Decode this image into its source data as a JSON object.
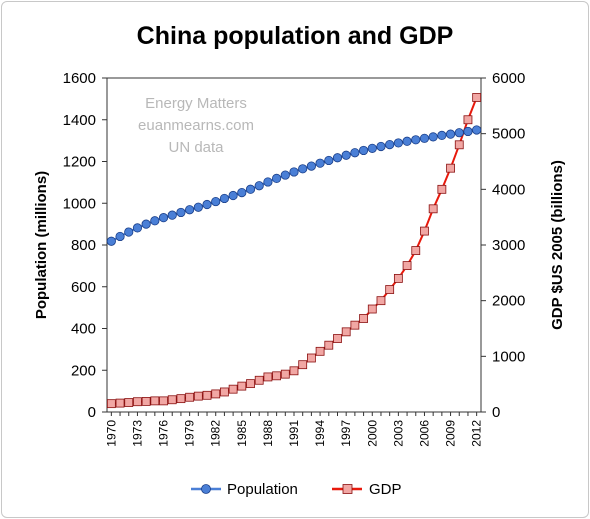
{
  "chart_data": {
    "type": "line",
    "title": "China population and GDP",
    "watermark": [
      "Energy Matters",
      "euanmearns.com",
      "UN data"
    ],
    "x": [
      1970,
      1971,
      1972,
      1973,
      1974,
      1975,
      1976,
      1977,
      1978,
      1979,
      1980,
      1981,
      1982,
      1983,
      1984,
      1985,
      1986,
      1987,
      1988,
      1989,
      1990,
      1991,
      1992,
      1993,
      1994,
      1995,
      1996,
      1997,
      1998,
      1999,
      2000,
      2001,
      2002,
      2003,
      2004,
      2005,
      2006,
      2007,
      2008,
      2009,
      2010,
      2011,
      2012
    ],
    "x_tick_labels": [
      "1970",
      "1973",
      "1976",
      "1979",
      "1982",
      "1985",
      "1988",
      "1991",
      "1994",
      "1997",
      "2000",
      "2003",
      "2006",
      "2009",
      "2012"
    ],
    "y_left": {
      "label": "Population (millions)",
      "ylim": [
        0,
        1600
      ],
      "ticks": [
        "0",
        "200",
        "400",
        "600",
        "800",
        "1000",
        "1200",
        "1400",
        "1600"
      ]
    },
    "y_right": {
      "label": "GDP $US 2005 (billions)",
      "ylim": [
        0,
        6000
      ],
      "ticks": [
        "0",
        "1000",
        "2000",
        "3000",
        "4000",
        "5000",
        "6000"
      ]
    },
    "grid": false,
    "legend_position": "bottom",
    "series": [
      {
        "name": "Population",
        "axis": "left",
        "color": "#4a7fd6",
        "marker": "circle",
        "values": [
          818,
          841,
          862,
          882,
          900,
          916,
          931,
          943,
          956,
          969,
          981,
          994,
          1008,
          1023,
          1037,
          1051,
          1067,
          1084,
          1102,
          1119,
          1135,
          1150,
          1165,
          1178,
          1192,
          1205,
          1218,
          1230,
          1242,
          1253,
          1263,
          1272,
          1281,
          1289,
          1297,
          1304,
          1311,
          1318,
          1325,
          1331,
          1338,
          1344,
          1351
        ]
      },
      {
        "name": "GDP",
        "axis": "right",
        "color": "#e8190c",
        "marker_fill": "#f1a7a4",
        "marker": "square",
        "values": [
          150,
          160,
          170,
          185,
          190,
          200,
          200,
          220,
          240,
          265,
          285,
          300,
          325,
          360,
          410,
          465,
          510,
          570,
          630,
          650,
          680,
          740,
          850,
          970,
          1090,
          1200,
          1320,
          1440,
          1560,
          1680,
          1850,
          2000,
          2200,
          2400,
          2630,
          2900,
          3250,
          3650,
          4000,
          4380,
          4800,
          5250,
          5650
        ]
      }
    ]
  }
}
